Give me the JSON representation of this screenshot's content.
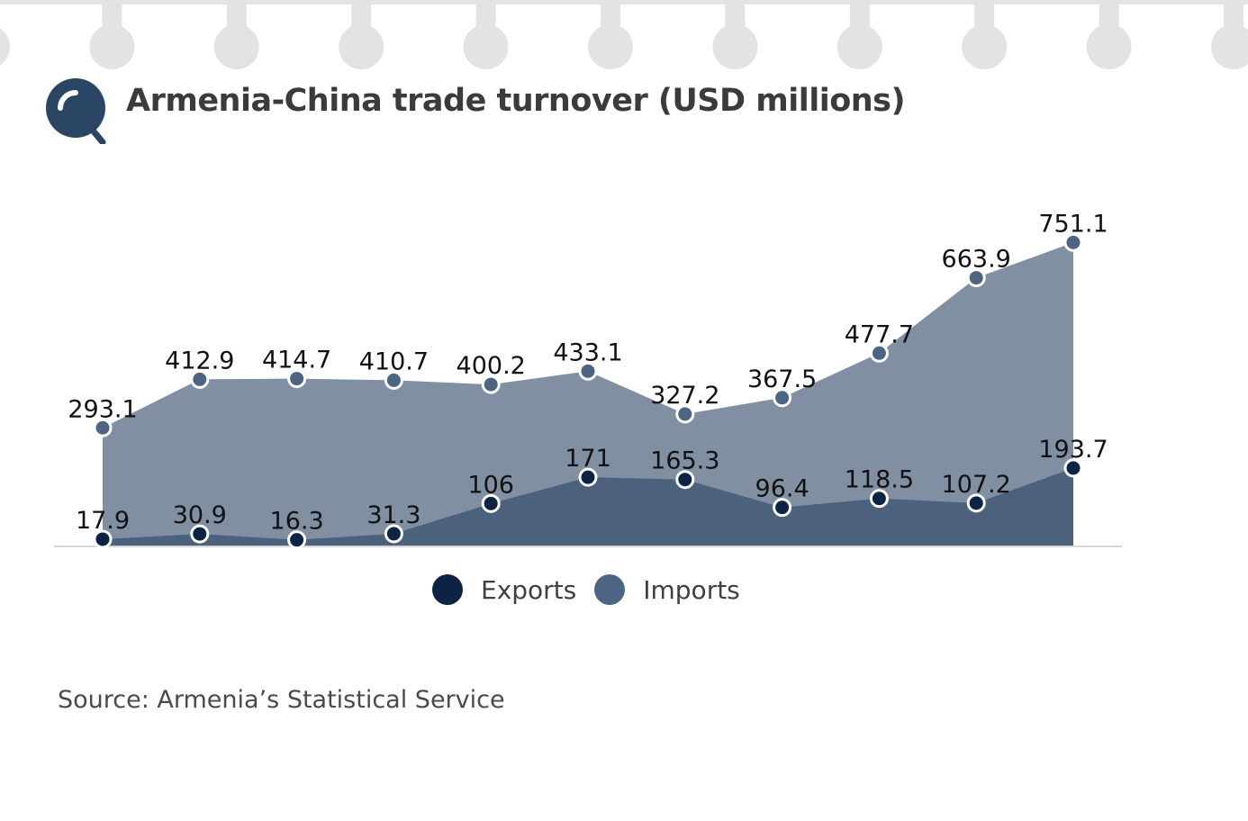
{
  "title": "Armenia-China trade turnover (USD millions)",
  "source": "Source: Armenia’s Statistical Service",
  "legend": {
    "exports": "Exports",
    "imports": "Imports"
  },
  "colors": {
    "exports_dot": "#0d2346",
    "exports_area": "#4c617c",
    "imports_dot": "#4d6582",
    "imports_area": "#818fa3",
    "icon": "#2a4664"
  },
  "icons": {
    "header": "magnifier-icon"
  },
  "chart_data": {
    "type": "area",
    "title": "Armenia-China trade turnover (USD millions)",
    "xlabel": "",
    "ylabel": "",
    "ylim": [
      0,
      800
    ],
    "grid": false,
    "legend_position": "bottom",
    "series": [
      {
        "name": "Exports",
        "values": [
          17.9,
          30.9,
          16.3,
          31.3,
          106,
          171,
          165.3,
          96.4,
          118.5,
          107.2,
          193.7
        ],
        "labels": [
          "17.9",
          "30.9",
          "16.3",
          "31.3",
          "106",
          "171",
          "165.3",
          "96.4",
          "118.5",
          "107.2",
          "193.7"
        ]
      },
      {
        "name": "Imports",
        "values": [
          293.1,
          412.9,
          414.7,
          410.7,
          400.2,
          433.1,
          327.2,
          367.5,
          477.7,
          663.9,
          751.1
        ],
        "labels": [
          "293.1",
          "412.9",
          "414.7",
          "410.7",
          "400.2",
          "433.1",
          "327.2",
          "367.5",
          "477.7",
          "663.9",
          "751.1"
        ]
      }
    ]
  }
}
